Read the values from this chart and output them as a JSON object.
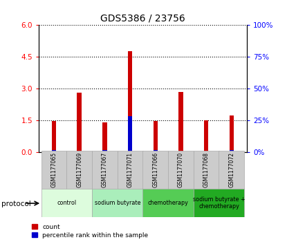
{
  "title": "GDS5386 / 23756",
  "samples": [
    "GSM1177065",
    "GSM1177069",
    "GSM1177067",
    "GSM1177071",
    "GSM1177066",
    "GSM1177070",
    "GSM1177068",
    "GSM1177072"
  ],
  "count_values": [
    1.45,
    2.8,
    1.38,
    4.75,
    1.45,
    2.82,
    1.5,
    1.72
  ],
  "percentile_values": [
    0.1,
    0.03,
    0.07,
    1.68,
    0.07,
    0.03,
    0.03,
    0.1
  ],
  "protocols": [
    {
      "label": "control",
      "indices": [
        0,
        1
      ],
      "color": "#ddfcdd"
    },
    {
      "label": "sodium butyrate",
      "indices": [
        2,
        3
      ],
      "color": "#aaeebb"
    },
    {
      "label": "chemotherapy",
      "indices": [
        4,
        5
      ],
      "color": "#55cc55"
    },
    {
      "label": "sodium butyrate +\nchemotherapy",
      "indices": [
        6,
        7
      ],
      "color": "#22aa22"
    }
  ],
  "ylim_left": [
    0,
    6
  ],
  "ylim_right": [
    0,
    100
  ],
  "yticks_left": [
    0,
    1.5,
    3.0,
    4.5,
    6.0
  ],
  "yticks_right": [
    0,
    25,
    50,
    75,
    100
  ],
  "bar_color_red": "#cc0000",
  "bar_color_blue": "#0000cc",
  "bar_width": 0.18,
  "protocol_label": "protocol"
}
